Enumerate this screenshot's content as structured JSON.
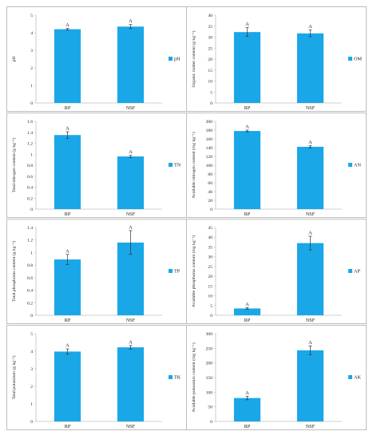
{
  "colors": {
    "bar": "#1aa7e8",
    "axis": "#bfbfbf",
    "err": "#333333"
  },
  "chart_data": [
    {
      "type": "bar",
      "id": "ph",
      "categories": [
        "RP",
        "NSF"
      ],
      "values": [
        4.2,
        4.35
      ],
      "errors": [
        0.05,
        0.12
      ],
      "sig": [
        "A",
        "A"
      ],
      "ylabel": "pH",
      "legend": "pH",
      "ylim": [
        0,
        5
      ],
      "yticks": [
        0,
        1,
        2,
        3,
        4,
        5
      ]
    },
    {
      "type": "bar",
      "id": "om",
      "categories": [
        "RP",
        "NSF"
      ],
      "values": [
        32.3,
        31.7
      ],
      "errors": [
        2.0,
        1.5
      ],
      "sig": [
        "A",
        "A"
      ],
      "ylabel": "Organic matter content (g kg⁻¹)",
      "legend": "OM",
      "ylim": [
        0,
        40
      ],
      "yticks": [
        0,
        5,
        10,
        15,
        20,
        25,
        30,
        35,
        40
      ]
    },
    {
      "type": "bar",
      "id": "tn",
      "categories": [
        "RP",
        "NSF"
      ],
      "values": [
        1.35,
        0.96
      ],
      "errors": [
        0.06,
        0.02
      ],
      "sig": [
        "A",
        "A"
      ],
      "ylabel": "Total nitrogen content (g kg⁻¹)",
      "legend": "TN",
      "ylim": [
        0,
        1.6
      ],
      "yticks": [
        "0",
        "0.2",
        "0.4",
        "0.6",
        "0.8",
        "1",
        "1.2",
        "1.4",
        "1.6"
      ]
    },
    {
      "type": "bar",
      "id": "an",
      "categories": [
        "RP",
        "NSF"
      ],
      "values": [
        178,
        142
      ],
      "errors": [
        2,
        3
      ],
      "sig": [
        "A",
        "A"
      ],
      "ylabel": "Available nitrogen content (mg kg⁻¹)",
      "legend": "AN",
      "ylim": [
        0,
        200
      ],
      "yticks": [
        0,
        20,
        40,
        60,
        80,
        100,
        120,
        140,
        160,
        180,
        200
      ]
    },
    {
      "type": "bar",
      "id": "tp",
      "categories": [
        "RP",
        "NSF"
      ],
      "values": [
        0.89,
        1.16
      ],
      "errors": [
        0.08,
        0.19
      ],
      "sig": [
        "A",
        "A"
      ],
      "ylabel": "Total phosphorus content (g kg⁻¹)",
      "legend": "TP",
      "ylim": [
        0,
        1.4
      ],
      "yticks": [
        "0",
        "0.2",
        "0.4",
        "0.6",
        "0.8",
        "1",
        "1.2",
        "1.4"
      ]
    },
    {
      "type": "bar",
      "id": "ap",
      "categories": [
        "RP",
        "NSF"
      ],
      "values": [
        3.5,
        37
      ],
      "errors": [
        0.4,
        3.5
      ],
      "sig": [
        "A",
        "A"
      ],
      "ylabel": "Available phosphorus content (mg kg⁻¹)",
      "legend": "AP",
      "ylim": [
        0,
        45
      ],
      "yticks": [
        0,
        5,
        10,
        15,
        20,
        25,
        30,
        35,
        40,
        45
      ]
    },
    {
      "type": "bar",
      "id": "tk",
      "categories": [
        "RP",
        "NSF"
      ],
      "values": [
        3.98,
        4.22
      ],
      "errors": [
        0.15,
        0.1
      ],
      "sig": [
        "A",
        "A"
      ],
      "ylabel": "Total potassium (g kg⁻¹)",
      "legend": "TK",
      "ylim": [
        0,
        5
      ],
      "yticks": [
        0,
        1,
        2,
        3,
        4,
        5
      ]
    },
    {
      "type": "bar",
      "id": "ak",
      "categories": [
        "RP",
        "NSF"
      ],
      "values": [
        80,
        243
      ],
      "errors": [
        6,
        15
      ],
      "sig": [
        "A",
        "A"
      ],
      "ylabel": "Available potassium content (mg kg⁻¹)",
      "legend": "AK",
      "ylim": [
        0,
        300
      ],
      "yticks": [
        0,
        50,
        100,
        150,
        200,
        250,
        300
      ]
    }
  ]
}
